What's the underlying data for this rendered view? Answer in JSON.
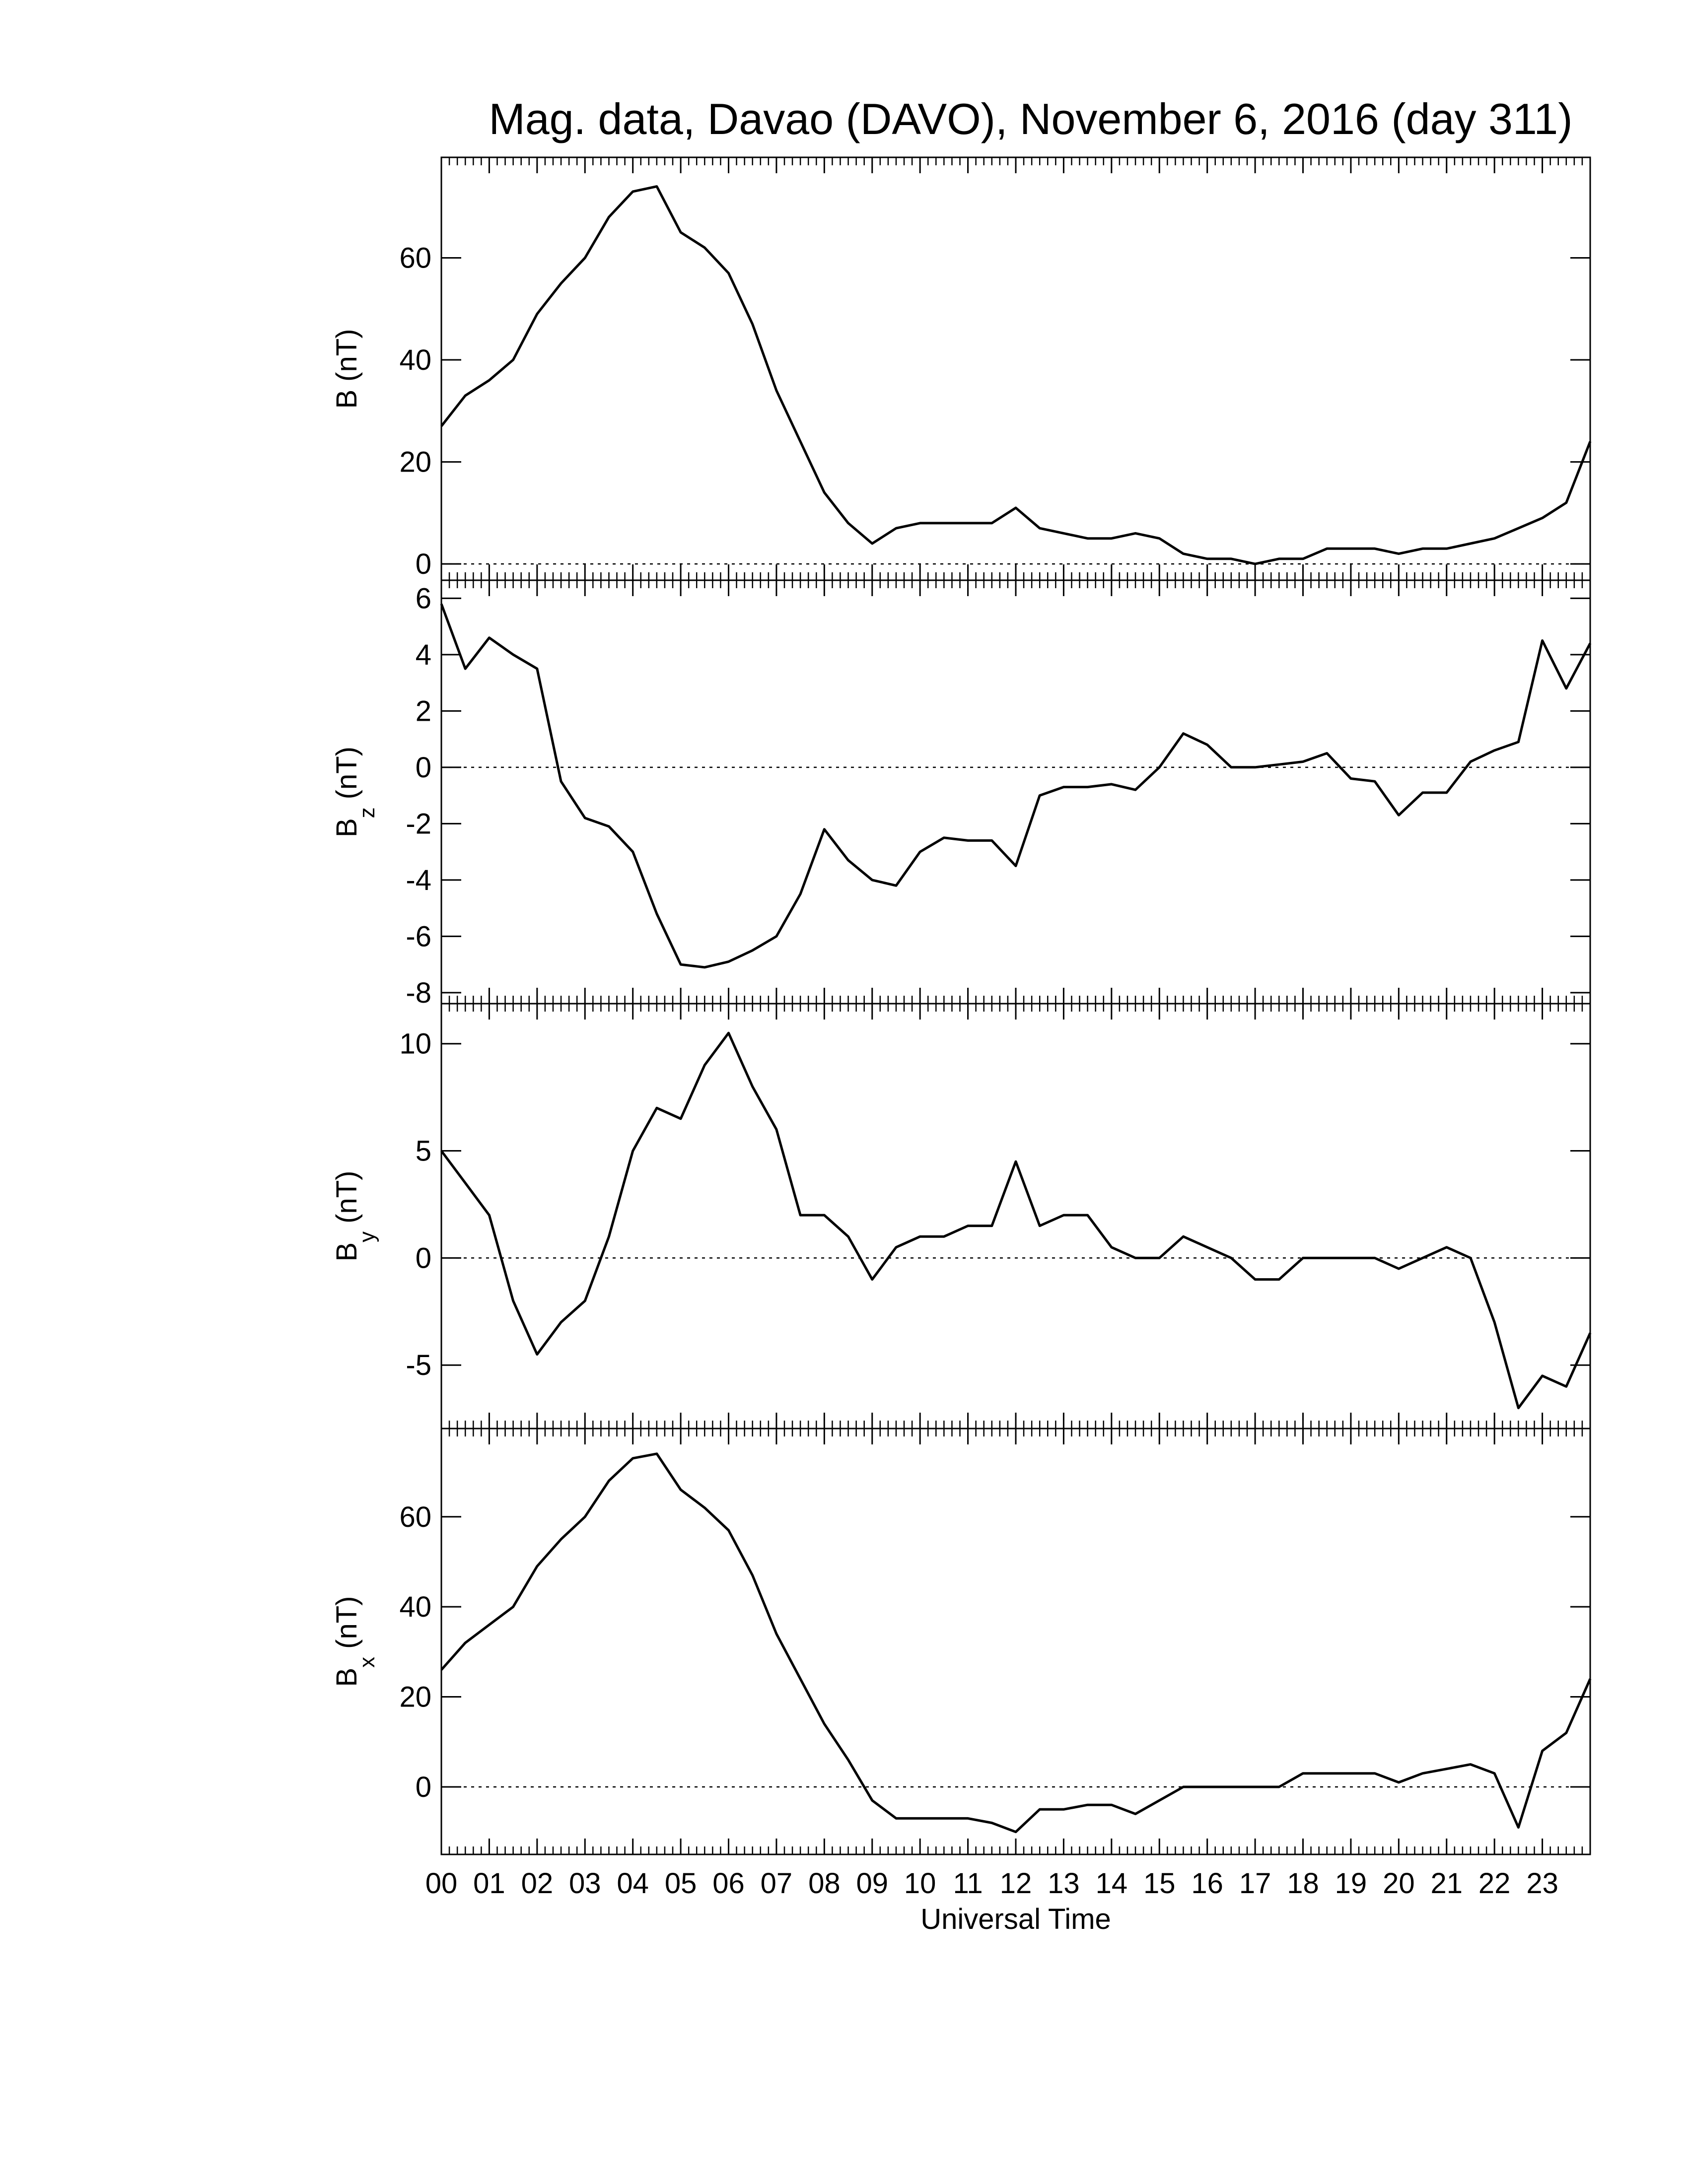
{
  "chart_data": [
    {
      "type": "line",
      "title": "Mag. data, Davao (DAVO), November 6, 2016 (day 311)",
      "ylabel": {
        "symbol": "B",
        "unit": "(nT)"
      },
      "xlim": [
        0,
        24
      ],
      "ylim": [
        -3.2,
        79.7
      ],
      "yticks": [
        0,
        20,
        40,
        60
      ],
      "hline": 0,
      "color": "#000000",
      "x_minor_per_major": 6,
      "x": [
        0,
        0.5,
        1,
        1.5,
        2,
        2.5,
        3,
        3.5,
        4,
        4.5,
        5,
        5.5,
        6,
        6.5,
        7,
        7.5,
        8,
        8.5,
        9,
        9.5,
        10,
        10.5,
        11,
        11.5,
        12,
        12.5,
        13,
        13.5,
        14,
        14.5,
        15,
        15.5,
        16,
        16.5,
        17,
        17.5,
        18,
        18.5,
        19,
        19.5,
        20,
        20.5,
        21,
        21.5,
        22,
        22.5,
        23,
        23.5,
        24
      ],
      "values": [
        27,
        33,
        36,
        40,
        49,
        55,
        60,
        68,
        73,
        74,
        65,
        62,
        57,
        47,
        34,
        24,
        14,
        8,
        4,
        7,
        8,
        8,
        8,
        8,
        11,
        7,
        6,
        5,
        5,
        6,
        5,
        2,
        1,
        1,
        0,
        1,
        1,
        3,
        3,
        3,
        2,
        3,
        3,
        4,
        5,
        7,
        9,
        12,
        24
      ]
    },
    {
      "type": "line",
      "ylabel": {
        "symbol": "B",
        "subscript": "z",
        "unit": "(nT)"
      },
      "xlim": [
        0,
        24
      ],
      "ylim": [
        -8.39,
        6.64
      ],
      "yticks": [
        -8,
        -6,
        -4,
        -2,
        0,
        2,
        4,
        6
      ],
      "hline": 0,
      "color": "#000000",
      "x_minor_per_major": 6,
      "x": [
        0,
        0.5,
        1,
        1.5,
        2,
        2.5,
        3,
        3.5,
        4,
        4.5,
        5,
        5.5,
        6,
        6.5,
        7,
        7.5,
        8,
        8.5,
        9,
        9.5,
        10,
        10.5,
        11,
        11.5,
        12,
        12.5,
        13,
        13.5,
        14,
        14.5,
        15,
        15.5,
        16,
        16.5,
        17,
        17.5,
        18,
        18.5,
        19,
        19.5,
        20,
        20.5,
        21,
        21.5,
        22,
        22.5,
        23,
        23.5,
        24
      ],
      "values": [
        5.8,
        3.5,
        4.6,
        4,
        3.5,
        -0.5,
        -1.8,
        -2.1,
        -3,
        -5.2,
        -7,
        -7.1,
        -6.9,
        -6.5,
        -6,
        -4.5,
        -2.2,
        -3.3,
        -4,
        -4.2,
        -3,
        -2.5,
        -2.6,
        -2.6,
        -3.5,
        -1,
        -0.7,
        -0.7,
        -0.6,
        -0.8,
        0,
        1.2,
        0.8,
        0,
        0,
        0.1,
        0.2,
        0.5,
        -0.4,
        -0.5,
        -1.7,
        -0.9,
        -0.9,
        0.2,
        0.6,
        0.9,
        4.5,
        2.8,
        4.4
      ]
    },
    {
      "type": "line",
      "ylabel": {
        "symbol": "B",
        "subscript": "y",
        "unit": "(nT)"
      },
      "xlim": [
        0,
        24
      ],
      "ylim": [
        -7.96,
        11.87
      ],
      "yticks": [
        -5,
        0,
        5,
        10
      ],
      "hline": 0,
      "color": "#000000",
      "x_minor_per_major": 6,
      "x": [
        0,
        0.5,
        1,
        1.5,
        2,
        2.5,
        3,
        3.5,
        4,
        4.5,
        5,
        5.5,
        6,
        6.5,
        7,
        7.5,
        8,
        8.5,
        9,
        9.5,
        10,
        10.5,
        11,
        11.5,
        12,
        12.5,
        13,
        13.5,
        14,
        14.5,
        15,
        15.5,
        16,
        16.5,
        17,
        17.5,
        18,
        18.5,
        19,
        19.5,
        20,
        20.5,
        21,
        21.5,
        22,
        22.5,
        23,
        23.5,
        24
      ],
      "values": [
        5,
        3.5,
        2,
        -2,
        -4.5,
        -3,
        -2,
        1,
        5,
        7,
        6.5,
        9,
        10.5,
        8,
        6,
        2,
        2,
        1,
        -1,
        0.5,
        1,
        1,
        1.5,
        1.5,
        4.5,
        1.5,
        2,
        2,
        0.5,
        0,
        0,
        1,
        0.5,
        0,
        -1,
        -1,
        0,
        0,
        0,
        0,
        -0.5,
        0,
        0.5,
        0,
        -3,
        -7,
        -5.5,
        -6,
        -3.5
      ]
    },
    {
      "type": "line",
      "ylabel": {
        "symbol": "B",
        "subscript": "x",
        "unit": "(nT)"
      },
      "xlabel": "Universal Time",
      "xlim": [
        0,
        24
      ],
      "ylim": [
        -15,
        79.6
      ],
      "yticks": [
        0,
        20,
        40,
        60
      ],
      "hline": 0,
      "color": "#000000",
      "x_minor_per_major": 6,
      "xticks": [
        {
          "value": 0,
          "label": "00"
        },
        {
          "value": 1,
          "label": "01"
        },
        {
          "value": 2,
          "label": "02"
        },
        {
          "value": 3,
          "label": "03"
        },
        {
          "value": 4,
          "label": "04"
        },
        {
          "value": 5,
          "label": "05"
        },
        {
          "value": 6,
          "label": "06"
        },
        {
          "value": 7,
          "label": "07"
        },
        {
          "value": 8,
          "label": "08"
        },
        {
          "value": 9,
          "label": "09"
        },
        10,
        11,
        12,
        13,
        14,
        15,
        16,
        17,
        18,
        19,
        20,
        21,
        22,
        23
      ],
      "x": [
        0,
        0.5,
        1,
        1.5,
        2,
        2.5,
        3,
        3.5,
        4,
        4.5,
        5,
        5.5,
        6,
        6.5,
        7,
        7.5,
        8,
        8.5,
        9,
        9.5,
        10,
        10.5,
        11,
        11.5,
        12,
        12.5,
        13,
        13.5,
        14,
        14.5,
        15,
        15.5,
        16,
        16.5,
        17,
        17.5,
        18,
        18.5,
        19,
        19.5,
        20,
        20.5,
        21,
        21.5,
        22,
        22.5,
        23,
        23.5,
        24
      ],
      "values": [
        26,
        32,
        36,
        40,
        49,
        55,
        60,
        68,
        73,
        74,
        66,
        62,
        57,
        47,
        34,
        24,
        14,
        6,
        -3,
        -7,
        -7,
        -7,
        -7,
        -8,
        -10,
        -5,
        -5,
        -4,
        -4,
        -6,
        -3,
        0,
        0,
        0,
        0,
        0,
        3,
        3,
        3,
        3,
        1,
        3,
        4,
        5,
        3,
        -9,
        8,
        12,
        24
      ]
    }
  ]
}
